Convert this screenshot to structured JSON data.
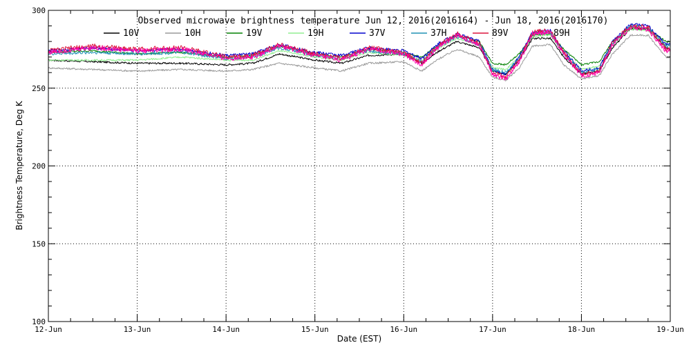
{
  "chart_data": {
    "type": "line",
    "title": "Observed microwave brightness temperature Jun 12, 2016(2016164) - Jun 18, 2016(2016170)",
    "xlabel": "Date (EST)",
    "ylabel": "Brightness Temperature, Deg K",
    "ylim": [
      100,
      300
    ],
    "xlim": [
      "12-Jun",
      "19-Jun"
    ],
    "yticks": [
      {
        "value": 100,
        "label": "100"
      },
      {
        "value": 150,
        "label": "150"
      },
      {
        "value": 200,
        "label": "200"
      },
      {
        "value": 250,
        "label": "250"
      },
      {
        "value": 300,
        "label": "300"
      }
    ],
    "xticks": [
      {
        "day": 0,
        "label": "12-Jun"
      },
      {
        "day": 1,
        "label": "13-Jun"
      },
      {
        "day": 2,
        "label": "14-Jun"
      },
      {
        "day": 3,
        "label": "15-Jun"
      },
      {
        "day": 4,
        "label": "16-Jun"
      },
      {
        "day": 5,
        "label": "17-Jun"
      },
      {
        "day": 6,
        "label": "18-Jun"
      },
      {
        "day": 7,
        "label": "19-Jun"
      }
    ],
    "grid": true,
    "legend_position": "top",
    "series": [
      {
        "name": "10V",
        "color": "#000000",
        "values": [
          [
            0,
            268
          ],
          [
            0.5,
            267
          ],
          [
            1,
            266
          ],
          [
            1.5,
            266
          ],
          [
            2,
            265
          ],
          [
            2.3,
            266
          ],
          [
            2.6,
            272
          ],
          [
            3,
            268
          ],
          [
            3.3,
            266
          ],
          [
            3.6,
            271
          ],
          [
            4,
            272
          ],
          [
            4.2,
            266
          ],
          [
            4.4,
            274
          ],
          [
            4.6,
            280
          ],
          [
            4.85,
            276
          ],
          [
            5,
            261
          ],
          [
            5.15,
            259
          ],
          [
            5.3,
            268
          ],
          [
            5.45,
            282
          ],
          [
            5.65,
            282
          ],
          [
            5.8,
            270
          ],
          [
            6,
            259
          ],
          [
            6.2,
            261
          ],
          [
            6.35,
            276
          ],
          [
            6.55,
            288
          ],
          [
            6.75,
            288
          ],
          [
            6.95,
            276
          ],
          [
            7,
            275
          ]
        ]
      },
      {
        "name": "10H",
        "color": "#999999",
        "values": [
          [
            0,
            263
          ],
          [
            0.5,
            262
          ],
          [
            1,
            261
          ],
          [
            1.5,
            262
          ],
          [
            2,
            261
          ],
          [
            2.3,
            262
          ],
          [
            2.6,
            266
          ],
          [
            3,
            263
          ],
          [
            3.3,
            261
          ],
          [
            3.6,
            266
          ],
          [
            4,
            267
          ],
          [
            4.2,
            261
          ],
          [
            4.4,
            269
          ],
          [
            4.6,
            275
          ],
          [
            4.85,
            270
          ],
          [
            5,
            257
          ],
          [
            5.15,
            255
          ],
          [
            5.3,
            263
          ],
          [
            5.45,
            277
          ],
          [
            5.65,
            278
          ],
          [
            5.8,
            265
          ],
          [
            6,
            256
          ],
          [
            6.2,
            258
          ],
          [
            6.35,
            272
          ],
          [
            6.55,
            284
          ],
          [
            6.75,
            284
          ],
          [
            6.95,
            270
          ],
          [
            7,
            270
          ]
        ]
      },
      {
        "name": "19V",
        "color": "#008000",
        "values": [
          [
            0,
            273
          ],
          [
            0.5,
            274
          ],
          [
            1,
            272
          ],
          [
            1.5,
            273
          ],
          [
            2,
            270
          ],
          [
            2.3,
            271
          ],
          [
            2.6,
            277
          ],
          [
            3,
            272
          ],
          [
            3.3,
            270
          ],
          [
            3.6,
            275
          ],
          [
            4,
            273
          ],
          [
            4.2,
            270
          ],
          [
            4.4,
            278
          ],
          [
            4.6,
            284
          ],
          [
            4.85,
            280
          ],
          [
            5,
            266
          ],
          [
            5.15,
            265
          ],
          [
            5.3,
            272
          ],
          [
            5.45,
            284
          ],
          [
            5.65,
            285
          ],
          [
            5.8,
            275
          ],
          [
            6,
            265
          ],
          [
            6.2,
            267
          ],
          [
            6.35,
            280
          ],
          [
            6.55,
            289
          ],
          [
            6.75,
            288
          ],
          [
            6.95,
            280
          ],
          [
            7,
            280
          ]
        ]
      },
      {
        "name": "19H",
        "color": "#90EE90",
        "values": [
          [
            0,
            268
          ],
          [
            0.5,
            268
          ],
          [
            1,
            268
          ],
          [
            1.5,
            270
          ],
          [
            2,
            268
          ],
          [
            2.3,
            268
          ],
          [
            2.6,
            274
          ],
          [
            3,
            270
          ],
          [
            3.3,
            268
          ],
          [
            3.6,
            273
          ],
          [
            4,
            271
          ],
          [
            4.2,
            268
          ],
          [
            4.4,
            276
          ],
          [
            4.6,
            282
          ],
          [
            4.85,
            278
          ],
          [
            5,
            263
          ],
          [
            5.15,
            262
          ],
          [
            5.3,
            270
          ],
          [
            5.45,
            283
          ],
          [
            5.65,
            284
          ],
          [
            5.8,
            273
          ],
          [
            6,
            262
          ],
          [
            6.2,
            264
          ],
          [
            6.35,
            278
          ],
          [
            6.55,
            288
          ],
          [
            6.75,
            287
          ],
          [
            6.95,
            278
          ],
          [
            7,
            278
          ]
        ]
      },
      {
        "name": "37V",
        "color": "#0000CD",
        "values": [
          [
            0,
            274
          ],
          [
            0.5,
            276
          ],
          [
            1,
            274
          ],
          [
            1.5,
            275
          ],
          [
            2,
            271
          ],
          [
            2.3,
            272
          ],
          [
            2.6,
            278
          ],
          [
            3,
            273
          ],
          [
            3.3,
            271
          ],
          [
            3.6,
            276
          ],
          [
            4,
            274
          ],
          [
            4.2,
            269
          ],
          [
            4.4,
            279
          ],
          [
            4.6,
            285
          ],
          [
            4.85,
            280
          ],
          [
            5,
            262
          ],
          [
            5.15,
            259
          ],
          [
            5.3,
            270
          ],
          [
            5.45,
            286
          ],
          [
            5.65,
            287
          ],
          [
            5.8,
            274
          ],
          [
            6,
            261
          ],
          [
            6.2,
            263
          ],
          [
            6.35,
            280
          ],
          [
            6.55,
            291
          ],
          [
            6.75,
            290
          ],
          [
            6.95,
            278
          ],
          [
            7,
            279
          ]
        ]
      },
      {
        "name": "37H",
        "color": "#1E90B4",
        "values": [
          [
            0,
            272
          ],
          [
            0.5,
            273
          ],
          [
            1,
            272
          ],
          [
            1.5,
            273
          ],
          [
            2,
            269
          ],
          [
            2.3,
            270
          ],
          [
            2.6,
            276
          ],
          [
            3,
            271
          ],
          [
            3.3,
            269
          ],
          [
            3.6,
            274
          ],
          [
            4,
            272
          ],
          [
            4.2,
            267
          ],
          [
            4.4,
            277
          ],
          [
            4.6,
            283
          ],
          [
            4.85,
            278
          ],
          [
            5,
            262
          ],
          [
            5.15,
            260
          ],
          [
            5.3,
            269
          ],
          [
            5.45,
            285
          ],
          [
            5.65,
            286
          ],
          [
            5.8,
            272
          ],
          [
            6,
            260
          ],
          [
            6.2,
            262
          ],
          [
            6.35,
            279
          ],
          [
            6.55,
            290
          ],
          [
            6.75,
            289
          ],
          [
            6.95,
            277
          ],
          [
            7,
            277
          ]
        ]
      },
      {
        "name": "89V",
        "color": "#DC143C",
        "values": [
          [
            0,
            274
          ],
          [
            0.5,
            277
          ],
          [
            1,
            275
          ],
          [
            1.5,
            276
          ],
          [
            2,
            270
          ],
          [
            2.3,
            271
          ],
          [
            2.6,
            278
          ],
          [
            3,
            272
          ],
          [
            3.3,
            269
          ],
          [
            3.6,
            276
          ],
          [
            4,
            273
          ],
          [
            4.2,
            266
          ],
          [
            4.4,
            278
          ],
          [
            4.6,
            285
          ],
          [
            4.85,
            279
          ],
          [
            5,
            260
          ],
          [
            5.15,
            257
          ],
          [
            5.3,
            268
          ],
          [
            5.45,
            286
          ],
          [
            5.65,
            287
          ],
          [
            5.8,
            273
          ],
          [
            6,
            259
          ],
          [
            6.2,
            261
          ],
          [
            6.35,
            279
          ],
          [
            6.55,
            290
          ],
          [
            6.75,
            289
          ],
          [
            6.95,
            275
          ],
          [
            7,
            275
          ]
        ]
      },
      {
        "name": "89H",
        "color": "#FF00AA",
        "values": [
          [
            0,
            273
          ],
          [
            0.5,
            276
          ],
          [
            1,
            274
          ],
          [
            1.5,
            275
          ],
          [
            2,
            269
          ],
          [
            2.3,
            270
          ],
          [
            2.6,
            277
          ],
          [
            3,
            271
          ],
          [
            3.3,
            268
          ],
          [
            3.6,
            275
          ],
          [
            4,
            272
          ],
          [
            4.2,
            265
          ],
          [
            4.4,
            277
          ],
          [
            4.6,
            284
          ],
          [
            4.85,
            278
          ],
          [
            5,
            259
          ],
          [
            5.15,
            256
          ],
          [
            5.3,
            267
          ],
          [
            5.45,
            285
          ],
          [
            5.65,
            286
          ],
          [
            5.8,
            272
          ],
          [
            6,
            258
          ],
          [
            6.2,
            260
          ],
          [
            6.35,
            278
          ],
          [
            6.55,
            289
          ],
          [
            6.75,
            288
          ],
          [
            6.95,
            274
          ],
          [
            7,
            274
          ]
        ]
      }
    ]
  }
}
